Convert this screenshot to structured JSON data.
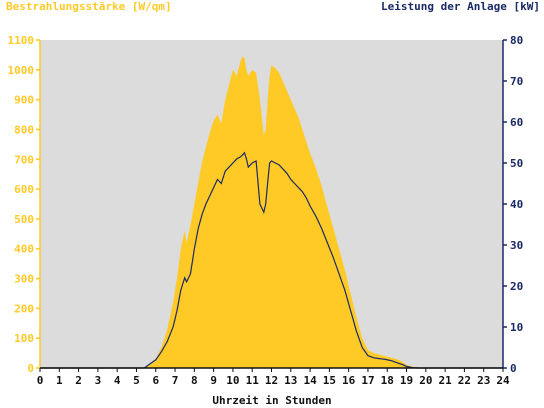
{
  "chart_data": {
    "type": "area",
    "ylabel": "Bestrahlungsstärke [W/qm]",
    "y2label": "Leistung der Anlage [kW]",
    "xlabel": "Uhrzeit in Stunden",
    "xlim": [
      0,
      24
    ],
    "ylim": [
      0,
      1100
    ],
    "y2lim": [
      0,
      80
    ],
    "x_ticks": [
      "0",
      "1",
      "2",
      "3",
      "4",
      "5",
      "6",
      "7",
      "8",
      "9",
      "10",
      "11",
      "12",
      "13",
      "14",
      "15",
      "16",
      "17",
      "18",
      "19",
      "20",
      "21",
      "22",
      "23",
      "24"
    ],
    "y_ticks": [
      "0",
      "100",
      "200",
      "300",
      "400",
      "500",
      "600",
      "700",
      "800",
      "900",
      "1000",
      "1100"
    ],
    "y2_ticks": [
      "0",
      "10",
      "20",
      "30",
      "40",
      "50",
      "60",
      "70",
      "80"
    ],
    "grid": false,
    "colors": {
      "plot_bg": "#dcdcdc",
      "irradiance_fill": "#ffc926",
      "power_line": "#1a2a66",
      "left_axis": "#ffc926",
      "right_axis": "#1a2a66"
    },
    "series": [
      {
        "name": "Bestrahlungsstärke [W/qm]",
        "axis": "left",
        "style": "area",
        "x": [
          0,
          5.4,
          5.7,
          6.0,
          6.3,
          6.6,
          6.9,
          7.1,
          7.3,
          7.5,
          7.6,
          7.8,
          8.0,
          8.2,
          8.4,
          8.6,
          8.8,
          9.0,
          9.2,
          9.4,
          9.6,
          9.8,
          10.0,
          10.2,
          10.4,
          10.5,
          10.6,
          10.7,
          10.8,
          11.0,
          11.2,
          11.4,
          11.6,
          11.7,
          11.8,
          11.9,
          12.0,
          12.2,
          12.4,
          12.6,
          12.8,
          13.0,
          13.2,
          13.4,
          13.6,
          13.8,
          14.0,
          14.3,
          14.6,
          14.9,
          15.2,
          15.5,
          15.8,
          16.1,
          16.4,
          16.7,
          17.0,
          17.3,
          17.6,
          17.9,
          18.2,
          18.5,
          18.8,
          19.0,
          19.3,
          19.6,
          20.0,
          24
        ],
        "values": [
          0,
          0,
          10,
          30,
          70,
          130,
          220,
          300,
          400,
          460,
          420,
          480,
          550,
          620,
          690,
          740,
          790,
          830,
          850,
          820,
          900,
          950,
          1000,
          980,
          1030,
          1045,
          1040,
          1000,
          980,
          1000,
          990,
          900,
          780,
          800,
          900,
          980,
          1015,
          1005,
          990,
          960,
          930,
          900,
          870,
          840,
          800,
          760,
          720,
          670,
          610,
          540,
          470,
          400,
          330,
          250,
          170,
          100,
          60,
          50,
          45,
          40,
          35,
          30,
          20,
          10,
          5,
          2,
          0,
          0
        ]
      },
      {
        "name": "Leistung der Anlage [kW]",
        "axis": "right",
        "style": "line",
        "x": [
          0,
          5.4,
          5.7,
          6.0,
          6.3,
          6.6,
          6.9,
          7.1,
          7.3,
          7.5,
          7.6,
          7.8,
          8.0,
          8.2,
          8.4,
          8.6,
          8.8,
          9.0,
          9.2,
          9.4,
          9.6,
          9.8,
          10.0,
          10.2,
          10.4,
          10.5,
          10.6,
          10.7,
          10.8,
          11.0,
          11.2,
          11.4,
          11.6,
          11.7,
          11.8,
          11.9,
          12.0,
          12.2,
          12.4,
          12.6,
          12.8,
          13.0,
          13.2,
          13.4,
          13.6,
          13.8,
          14.0,
          14.3,
          14.6,
          14.9,
          15.2,
          15.5,
          15.8,
          16.1,
          16.4,
          16.7,
          17.0,
          17.3,
          17.6,
          17.9,
          18.2,
          18.5,
          18.8,
          19.0,
          19.3,
          19.6,
          20.0,
          24
        ],
        "values": [
          0,
          0,
          1,
          2,
          4,
          6.5,
          10,
          14,
          19,
          22,
          21,
          23,
          29,
          34,
          37.5,
          40,
          42,
          44,
          46,
          45,
          48,
          49,
          50,
          51,
          51.5,
          52,
          52.5,
          51,
          49,
          50,
          50.5,
          40,
          38,
          40,
          45,
          50,
          50.5,
          50,
          49.5,
          48.5,
          47.5,
          46,
          45,
          44,
          43,
          41.5,
          39.5,
          37,
          34,
          30.5,
          27,
          23,
          19,
          14,
          9,
          5,
          3,
          2.5,
          2.3,
          2.1,
          1.8,
          1.3,
          0.8,
          0.4,
          0.1,
          0,
          0,
          0
        ]
      }
    ]
  }
}
